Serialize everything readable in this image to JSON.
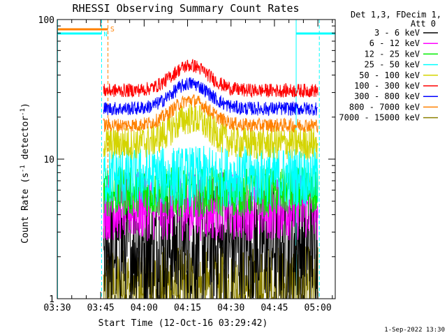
{
  "chart_data": {
    "type": "line",
    "title": "RHESSI Observing Summary Count Rates",
    "xlabel": "Start Time (12-Oct-16 03:29:42)",
    "ylabel_main": "Count Rate (s",
    "ylabel_exp1": "-1",
    "ylabel_mid": " detector",
    "ylabel_exp2": "-1",
    "ylabel_end": ")",
    "yscale": "log",
    "ylim": [
      1,
      100
    ],
    "y_ticks": [
      {
        "value": 1,
        "label": "1"
      },
      {
        "value": 10,
        "label": "10"
      },
      {
        "value": 100,
        "label": "100"
      }
    ],
    "xlim_minutes": [
      0,
      96
    ],
    "x_ticks": [
      {
        "minute": 0,
        "label": "03:30"
      },
      {
        "minute": 15,
        "label": "03:45"
      },
      {
        "minute": 30,
        "label": "04:00"
      },
      {
        "minute": 45,
        "label": "04:15"
      },
      {
        "minute": 60,
        "label": "04:30"
      },
      {
        "minute": 75,
        "label": "04:45"
      },
      {
        "minute": 90,
        "label": "05:00"
      }
    ],
    "legend_header": [
      "Det 1,3, FDecim 1,",
      "Att 0"
    ],
    "series": [
      {
        "name": "3 - 6 keV",
        "color": "#000000",
        "level": 2.4,
        "noise": 0.45
      },
      {
        "name": "6 - 12 keV",
        "color": "#ff00ff",
        "level": 4.6,
        "noise": 0.25
      },
      {
        "name": "12 - 25 keV",
        "color": "#00ee00",
        "level": 5.8,
        "noise": 0.18
      },
      {
        "name": "25 - 50 keV",
        "color": "#00ffff",
        "level": 7.5,
        "noise": 0.22
      },
      {
        "name": "50 - 100 keV",
        "color": "#d4d400",
        "level": 13,
        "noise": 0.12
      },
      {
        "name": "100 - 300 keV",
        "color": "#ff0000",
        "level": 31,
        "noise": 0.05
      },
      {
        "name": "300 - 800 keV",
        "color": "#0000ff",
        "level": 23,
        "noise": 0.05
      },
      {
        "name": "800 - 7000 keV",
        "color": "#ff8000",
        "level": 17.5,
        "noise": 0.05
      },
      {
        "name": "7000 - 15000 keV",
        "color": "#8b8000",
        "level": 1.2,
        "noise": 0.3
      }
    ],
    "data_window_minutes": [
      16,
      90
    ],
    "saa_label": "S",
    "night_label": "N",
    "timestamp": "1-Sep-2022 13:30"
  }
}
